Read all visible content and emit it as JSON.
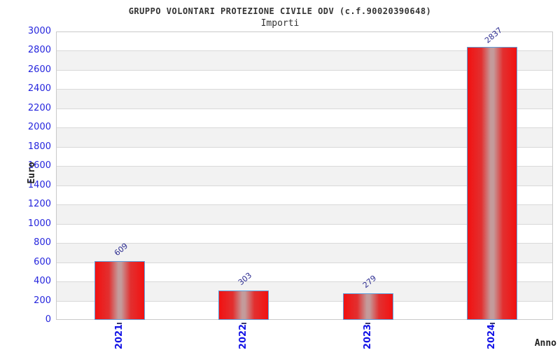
{
  "header": {
    "title": "GRUPPO VOLONTARI PROTEZIONE CIVILE ODV (c.f.90020390648)",
    "subtitle": "Importi"
  },
  "chart_data": {
    "type": "bar",
    "title": "GRUPPO VOLONTARI PROTEZIONE CIVILE ODV (c.f.90020390648)",
    "subtitle": "Importi",
    "categories": [
      "2021",
      "2022",
      "2023",
      "2024"
    ],
    "values": [
      609,
      303,
      279,
      2837
    ],
    "xlabel": "Anno",
    "ylabel": "Euro",
    "ylim": [
      0,
      3000
    ],
    "ytick_step": 200,
    "ytick_labels": [
      "0",
      "200",
      "400",
      "600",
      "800",
      "1000",
      "1200",
      "1400",
      "1600",
      "1800",
      "2000",
      "2200",
      "2400",
      "2600",
      "2800",
      "3000"
    ],
    "grid": "alternating horizontal bands every 200 units, light gray gridlines",
    "legend": "none",
    "colors": {
      "bar_red": "#f21111",
      "bar_center_sheen": "#c49b9b",
      "bar_border": "#5ea0dc",
      "band_gray": "#f2f2f2",
      "band_white": "#ffffff",
      "grid_line": "#d9d9d9",
      "plot_border": "#c9c9c9",
      "ytick_label": "#2525dd",
      "xtick_label": "#1414e6",
      "value_label": "#2b2b90",
      "title_text": "#333333",
      "axis_title_text": "#222222",
      "background": "#ffffff"
    }
  }
}
